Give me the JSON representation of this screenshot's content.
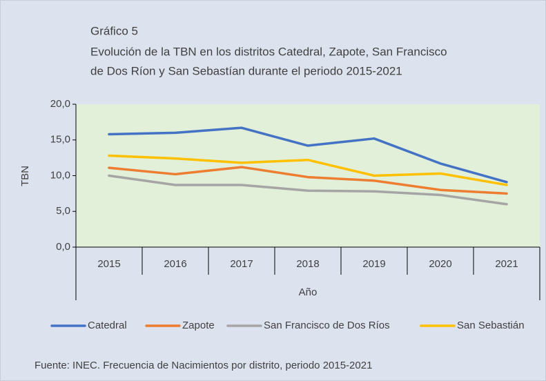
{
  "chart_data": {
    "type": "line",
    "title": "Gráfico 5",
    "subtitle": [
      "Evolución de la TBN en los distritos Catedral, Zapote, San Francisco",
      "de Dos Ríon y San Sebastían durante el periodo 2015-2021"
    ],
    "categories": [
      "2015",
      "2016",
      "2017",
      "2018",
      "2019",
      "2020",
      "2021"
    ],
    "x_label": "Año",
    "y_label": "TBN",
    "ylim": [
      0,
      20
    ],
    "yticks": [
      {
        "value": 0,
        "label": "0,0"
      },
      {
        "value": 5,
        "label": "5,0"
      },
      {
        "value": 10,
        "label": "10,0"
      },
      {
        "value": 15,
        "label": "15,0"
      },
      {
        "value": 20,
        "label": "20,0"
      }
    ],
    "series": [
      {
        "name": "Catedral",
        "color": "#4472c4",
        "values": [
          15.8,
          16.0,
          16.7,
          14.2,
          15.2,
          11.7,
          9.1
        ]
      },
      {
        "name": "Zapote",
        "color": "#ed7d31",
        "values": [
          11.1,
          10.2,
          11.2,
          9.8,
          9.3,
          8.0,
          7.5
        ]
      },
      {
        "name": "San Francisco de Dos Ríos",
        "color": "#a5a5a5",
        "values": [
          10.0,
          8.7,
          8.7,
          7.9,
          7.8,
          7.3,
          6.0
        ]
      },
      {
        "name": "San Sebastián",
        "color": "#ffc000",
        "values": [
          12.8,
          12.4,
          11.8,
          12.2,
          10.0,
          10.3,
          8.7
        ]
      }
    ],
    "legend": "bottom",
    "source": "Fuente: INEC. Frecuencia de Nacimientos por distrito, periodo 2015-2021"
  }
}
